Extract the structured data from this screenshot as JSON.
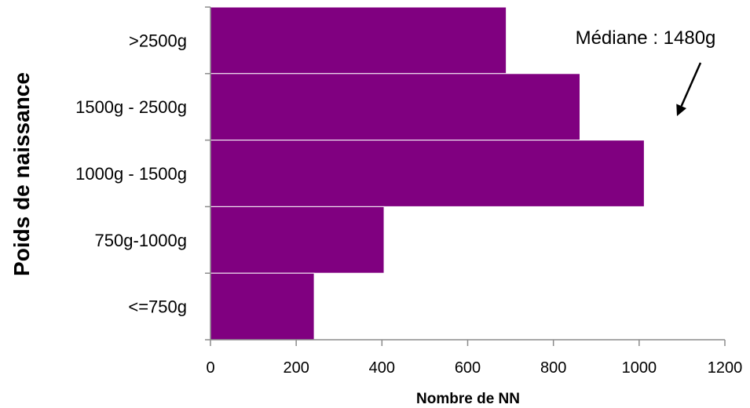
{
  "chart_data": {
    "type": "bar",
    "orientation": "horizontal",
    "categories": [
      ">2500g",
      "1500g - 2500g",
      "1000g - 1500g",
      "750g-1000g",
      "<=750g"
    ],
    "values": [
      690,
      862,
      1012,
      405,
      242
    ],
    "xlabel": "Nombre de NN",
    "ylabel": "Poids de naissance",
    "xlim": [
      0,
      1200
    ],
    "xticks": [
      0,
      200,
      400,
      600,
      800,
      1000,
      1200
    ],
    "grid": false,
    "legend": "none",
    "bar_color": "#800080",
    "annotation": {
      "text": "Médiane : 1480g",
      "arrow": true
    }
  }
}
